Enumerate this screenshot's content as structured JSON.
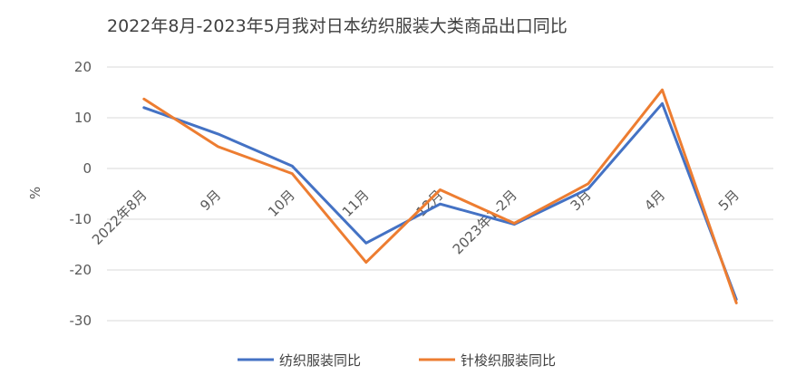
{
  "chart_data": {
    "type": "line",
    "title": "2022年8月-2023年5月我对日本纺织服装大类商品出口同比",
    "xlabel": "",
    "ylabel": "%",
    "categories": [
      "2022年8月",
      "9月",
      "10月",
      "11月",
      "12月",
      "2023年1-2月",
      "3月",
      "4月",
      "5月"
    ],
    "ylim": [
      -30,
      20
    ],
    "yticks": [
      20,
      10,
      0,
      -10,
      -20,
      -30
    ],
    "grid": true,
    "legend_position": "bottom",
    "series": [
      {
        "name": "纺织服装同比",
        "color": "#4472C4",
        "values": [
          12.0,
          6.8,
          0.5,
          -14.7,
          -7.0,
          -11.0,
          -4.0,
          12.8,
          -25.8
        ]
      },
      {
        "name": "针梭织服装同比",
        "color": "#ED7D31",
        "values": [
          13.7,
          4.3,
          -1.0,
          -18.5,
          -4.2,
          -10.8,
          -3.0,
          15.5,
          -26.5
        ]
      }
    ]
  }
}
